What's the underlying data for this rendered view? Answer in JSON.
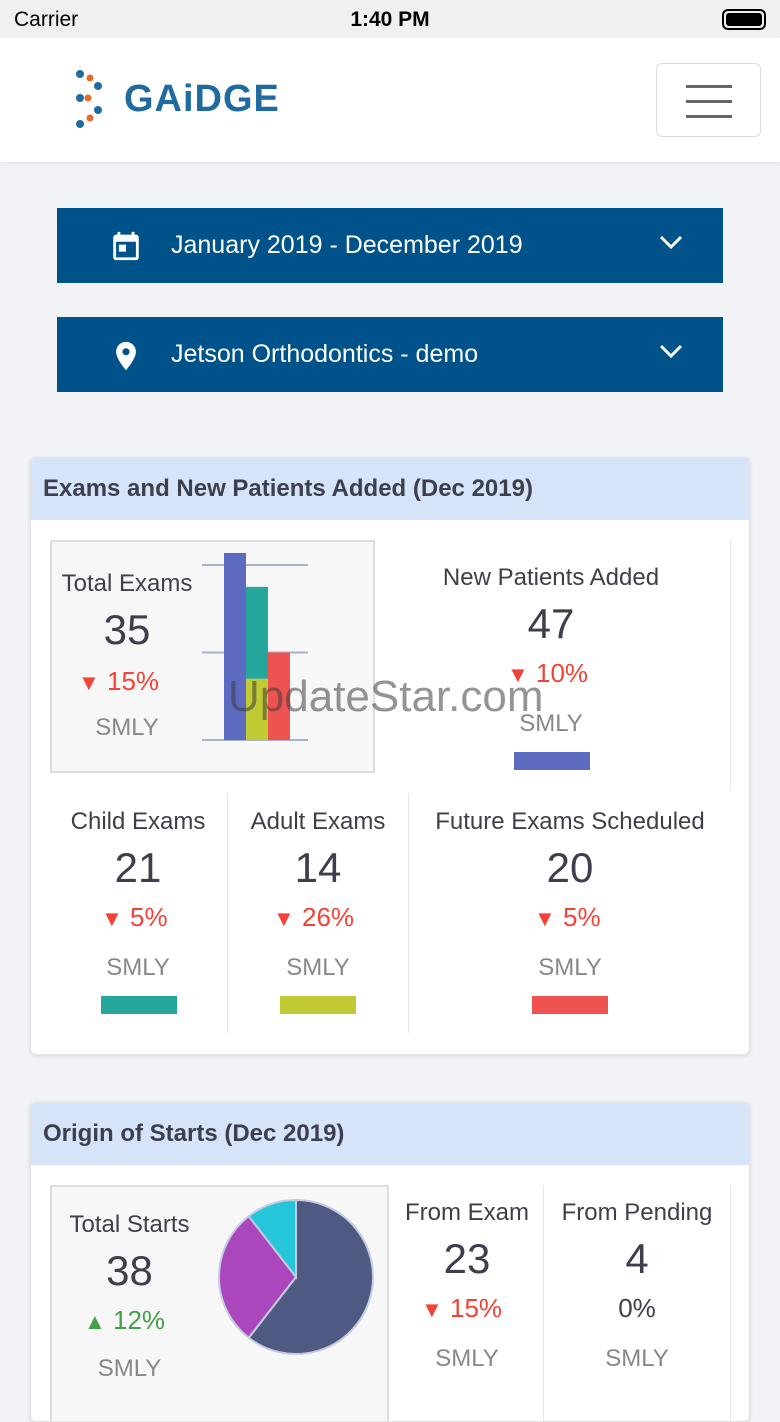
{
  "status_bar": {
    "carrier": "Carrier",
    "time": "1:40 PM"
  },
  "brand": {
    "logo_text": "GAiDGE"
  },
  "filters": {
    "date_range": "January 2019 - December 2019",
    "location": "Jetson Orthodontics - demo"
  },
  "exams_card": {
    "title": "Exams and New Patients Added (Dec 2019)",
    "total": {
      "label": "Total Exams",
      "value": "35",
      "change": "15%",
      "direction": "down",
      "compare": "SMLY"
    },
    "new_patients": {
      "label": "New Patients Added",
      "value": "47",
      "change": "10%",
      "direction": "down",
      "compare": "SMLY",
      "color": "#5c6bc0"
    },
    "child": {
      "label": "Child Exams",
      "value": "21",
      "change": "5%",
      "direction": "down",
      "compare": "SMLY",
      "color": "#26a69a"
    },
    "adult": {
      "label": "Adult Exams",
      "value": "14",
      "change": "26%",
      "direction": "down",
      "compare": "SMLY",
      "color": "#c0ca33"
    },
    "future": {
      "label": "Future Exams Scheduled",
      "value": "20",
      "change": "5%",
      "direction": "down",
      "compare": "SMLY",
      "color": "#ef5350"
    }
  },
  "starts_card": {
    "title": "Origin of Starts (Dec 2019)",
    "total": {
      "label": "Total Starts",
      "value": "38",
      "change": "12%",
      "direction": "up",
      "compare": "SMLY"
    },
    "from_exam": {
      "label": "From Exam",
      "value": "23",
      "change": "15%",
      "direction": "down",
      "compare": "SMLY"
    },
    "from_pending": {
      "label": "From Pending",
      "value": "4",
      "change": "0%",
      "compare": "SMLY"
    }
  },
  "chart_data": [
    {
      "type": "bar",
      "stacked": true,
      "ylim": [
        0,
        40
      ],
      "grid": true,
      "bars": [
        {
          "stack": [
            {
              "value": 47,
              "color": "#5c6bc0"
            }
          ]
        },
        {
          "stack": [
            {
              "value": 14,
              "color": "#c0ca33"
            },
            {
              "value": 21,
              "color": "#26a69a"
            }
          ]
        },
        {
          "stack": [
            {
              "value": 20,
              "color": "#ef5350"
            }
          ]
        }
      ]
    },
    {
      "type": "pie",
      "slices": [
        {
          "value": 23,
          "color": "#4e5a82"
        },
        {
          "value": 11,
          "color": "#ab47bc"
        },
        {
          "value": 4,
          "color": "#26c6da"
        }
      ]
    }
  ],
  "watermark": "UpdateStar.com"
}
